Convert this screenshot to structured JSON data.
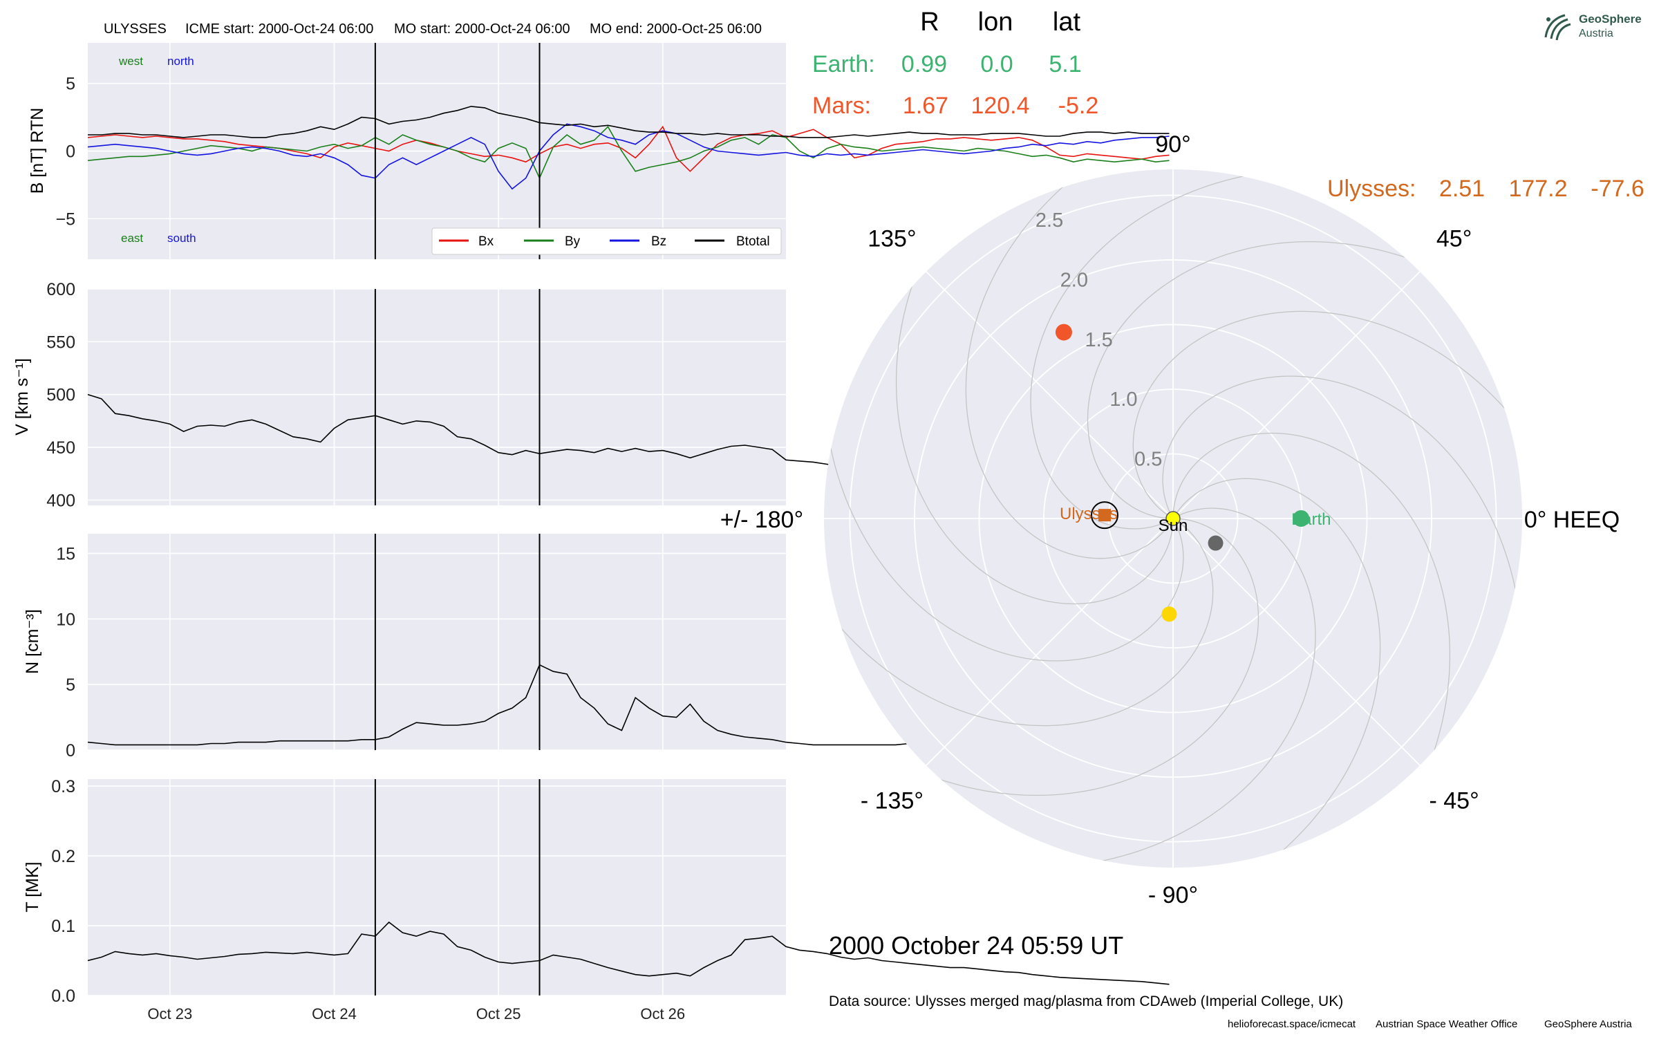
{
  "header": {
    "spacecraft": "ULYSSES",
    "icme_start": "ICME start: 2000-Oct-24 06:00",
    "mo_start": "MO start: 2000-Oct-24 06:00",
    "mo_end": "MO end: 2000-Oct-25 06:00"
  },
  "colors": {
    "panel_bg": "#EAEAF2",
    "grid": "#ffffff",
    "bx": "#e8120f",
    "by": "#1a7f1a",
    "bz": "#1414e0",
    "btotal": "#000000",
    "earth": "#3cb371",
    "mars": "#f0562a",
    "ulysses": "#d2691e",
    "sun": "#ffff00",
    "venus": "#ffd700",
    "mercury": "#666666",
    "logo": "#2f5a4c"
  },
  "positions_table": {
    "headers": [
      "R",
      "lon",
      "lat"
    ],
    "earth": {
      "label": "Earth:",
      "R": "0.99",
      "lon": "0.0",
      "lat": "5.1"
    },
    "mars": {
      "label": "Mars:",
      "R": "1.67",
      "lon": "120.4",
      "lat": "-5.2"
    },
    "ulysses": {
      "label": "Ulysses:",
      "R": "2.51",
      "lon": "177.2",
      "lat": "-77.6"
    }
  },
  "logo": {
    "line1": "GeoSphere",
    "line2": "Austria",
    "icon": "geosphere-logo-icon"
  },
  "date_label": "2000 October 24  05:59 UT",
  "data_source": "Data source: Ulysses merged mag/plasma from CDAweb (Imperial College, UK)",
  "footer": {
    "credit1": "helioforecast.space/icmecat",
    "credit2": "Austrian Space Weather Office",
    "credit3": "GeoSphere Austria"
  },
  "chart_data": [
    {
      "type": "line",
      "panel": "magnetic-field",
      "ylabel": "B [nT] RTN",
      "ylim": [
        -8,
        8
      ],
      "yticks": [
        5,
        0,
        -5
      ],
      "ytick_labels": [
        "5",
        "0",
        "−5"
      ],
      "annotations": {
        "west": "west",
        "north": "north",
        "east": "east",
        "south": "south"
      },
      "legend_position": "lower right",
      "x_start_day": "2000-10-22 12:00",
      "x_step_hours": 2,
      "series": [
        {
          "name": "Bx",
          "values": [
            1.0,
            1.1,
            1.2,
            1.1,
            1.0,
            1.1,
            1.0,
            0.9,
            0.9,
            0.8,
            0.7,
            0.5,
            0.4,
            0.3,
            0.2,
            0.0,
            -0.2,
            -0.5,
            0.3,
            0.6,
            0.4,
            0.2,
            0.0,
            0.5,
            0.8,
            0.6,
            0.3,
            0.0,
            -0.2,
            -0.4,
            -0.3,
            -0.5,
            -0.8,
            -0.2,
            0.3,
            0.5,
            0.2,
            0.5,
            0.6,
            0.2,
            -0.5,
            0.5,
            1.8,
            -0.5,
            -1.5,
            -0.5,
            0.5,
            1.0,
            1.2,
            1.3,
            1.5,
            1.0,
            1.3,
            1.6,
            1.0,
            0.5,
            -0.5,
            -0.3,
            0.2,
            0.5,
            0.6,
            0.7,
            0.9,
            0.9,
            1.0,
            0.9,
            0.8,
            0.9,
            1.0,
            0.8,
            0.3,
            -0.3,
            -0.4,
            -0.2,
            -0.3,
            -0.4,
            -0.5,
            -0.6,
            -0.4,
            -0.3
          ]
        },
        {
          "name": "By",
          "values": [
            -0.7,
            -0.6,
            -0.5,
            -0.4,
            -0.4,
            -0.3,
            -0.2,
            0.0,
            0.2,
            0.4,
            0.3,
            0.2,
            0.0,
            0.3,
            0.2,
            0.1,
            0.0,
            0.3,
            0.5,
            0.2,
            0.4,
            1.0,
            0.5,
            1.2,
            0.8,
            0.5,
            0.3,
            0.0,
            -0.5,
            -0.8,
            0.2,
            0.6,
            0.2,
            -2.0,
            0.3,
            1.2,
            0.5,
            0.8,
            1.8,
            0.0,
            -1.5,
            -1.2,
            -1.0,
            -0.8,
            -0.5,
            0.0,
            0.3,
            0.8,
            1.0,
            0.5,
            1.2,
            1.0,
            0.0,
            -0.5,
            0.2,
            0.5,
            0.3,
            0.2,
            0.0,
            0.1,
            0.2,
            0.3,
            0.2,
            0.1,
            0.0,
            0.2,
            0.1,
            0.0,
            -0.2,
            -0.4,
            -0.3,
            -0.5,
            -0.8,
            -0.6,
            -0.7,
            -0.8,
            -0.7,
            -0.6,
            -0.8,
            -0.7
          ]
        },
        {
          "name": "Bz",
          "values": [
            0.3,
            0.4,
            0.5,
            0.4,
            0.3,
            0.2,
            0.0,
            -0.2,
            -0.3,
            -0.2,
            0.0,
            0.2,
            0.3,
            0.2,
            0.0,
            -0.3,
            -0.4,
            -0.2,
            -0.5,
            -1.0,
            -1.8,
            -2.0,
            -1.0,
            -0.5,
            -1.0,
            -0.5,
            0.0,
            0.5,
            1.0,
            0.5,
            -1.5,
            -2.8,
            -2.0,
            0.0,
            1.2,
            2.0,
            1.8,
            1.5,
            1.0,
            0.8,
            0.5,
            1.2,
            1.5,
            1.3,
            0.8,
            0.3,
            0.0,
            -0.1,
            -0.2,
            -0.3,
            -0.2,
            -0.1,
            -0.3,
            -0.4,
            -0.2,
            -0.3,
            -0.2,
            -0.3,
            -0.2,
            -0.1,
            0.0,
            0.1,
            0.0,
            -0.1,
            -0.2,
            -0.1,
            0.0,
            0.2,
            0.3,
            0.5,
            0.4,
            0.6,
            0.5,
            0.7,
            0.6,
            0.8,
            0.9,
            1.0,
            1.0,
            1.1
          ]
        },
        {
          "name": "Btotal",
          "values": [
            1.2,
            1.2,
            1.3,
            1.3,
            1.2,
            1.2,
            1.1,
            1.0,
            1.1,
            1.2,
            1.2,
            1.1,
            1.0,
            1.0,
            1.2,
            1.3,
            1.5,
            1.8,
            1.6,
            2.0,
            2.5,
            2.4,
            2.0,
            2.2,
            2.3,
            2.5,
            2.8,
            3.0,
            3.3,
            3.2,
            2.8,
            2.6,
            2.4,
            2.1,
            2.0,
            1.9,
            2.0,
            1.8,
            1.9,
            1.7,
            1.5,
            1.4,
            1.4,
            1.3,
            1.3,
            1.2,
            1.3,
            1.2,
            1.2,
            1.2,
            1.1,
            1.1,
            1.0,
            1.0,
            1.0,
            1.1,
            1.2,
            1.1,
            1.2,
            1.3,
            1.4,
            1.3,
            1.3,
            1.2,
            1.2,
            1.2,
            1.3,
            1.3,
            1.3,
            1.2,
            1.1,
            1.1,
            1.3,
            1.4,
            1.4,
            1.3,
            1.4,
            1.3,
            1.3,
            1.3
          ]
        }
      ]
    },
    {
      "type": "line",
      "panel": "speed",
      "ylabel": "V [km s⁻¹]",
      "ylim": [
        395,
        600
      ],
      "yticks": [
        600,
        550,
        500,
        450,
        400
      ],
      "series": [
        {
          "name": "V",
          "values": [
            500,
            496,
            482,
            480,
            477,
            475,
            472,
            465,
            470,
            471,
            470,
            474,
            476,
            472,
            466,
            460,
            458,
            455,
            468,
            476,
            478,
            480,
            476,
            472,
            475,
            474,
            470,
            460,
            458,
            452,
            445,
            443,
            447,
            444,
            446,
            448,
            447,
            445,
            449,
            446,
            449,
            446,
            447,
            444,
            440,
            444,
            448,
            451,
            452,
            450,
            448,
            438,
            437,
            436,
            434,
            432,
            430,
            427,
            424,
            422,
            420,
            418,
            416,
            414,
            412,
            410,
            409,
            408,
            408,
            410,
            411,
            412,
            411,
            410,
            409,
            408,
            407,
            408,
            410,
            412
          ]
        }
      ]
    },
    {
      "type": "line",
      "panel": "density",
      "ylabel": "N [cm⁻³]",
      "ylim": [
        0,
        16.5
      ],
      "yticks": [
        15,
        10,
        5,
        0
      ],
      "series": [
        {
          "name": "N",
          "values": [
            0.6,
            0.5,
            0.4,
            0.4,
            0.4,
            0.4,
            0.4,
            0.4,
            0.4,
            0.5,
            0.5,
            0.6,
            0.6,
            0.6,
            0.7,
            0.7,
            0.7,
            0.7,
            0.7,
            0.7,
            0.8,
            0.8,
            1.0,
            1.6,
            2.1,
            2.0,
            1.9,
            1.9,
            2.0,
            2.2,
            2.8,
            3.2,
            4.0,
            6.5,
            6.0,
            5.8,
            4.0,
            3.2,
            2.0,
            1.5,
            4.0,
            3.2,
            2.6,
            2.5,
            3.5,
            2.2,
            1.5,
            1.2,
            1.0,
            0.9,
            0.8,
            0.6,
            0.5,
            0.4,
            0.4,
            0.4,
            0.4,
            0.4,
            0.4,
            0.4,
            0.5,
            0.6,
            0.8,
            1.0,
            1.2,
            1.3,
            1.1,
            1.0,
            1.0,
            1.1,
            1.2,
            1.3,
            1.2,
            1.0,
            0.8,
            1.0,
            1.2,
            1.3,
            1.6,
            2.2
          ]
        }
      ]
    },
    {
      "type": "line",
      "panel": "temperature",
      "ylabel": "T [MK]",
      "ylim": [
        0,
        0.31
      ],
      "yticks": [
        0.3,
        0.2,
        0.1,
        0.0
      ],
      "xticks": [
        "Oct 23",
        "Oct 24",
        "Oct 25",
        "Oct 26"
      ],
      "series": [
        {
          "name": "T",
          "values": [
            0.05,
            0.055,
            0.063,
            0.06,
            0.058,
            0.06,
            0.057,
            0.055,
            0.052,
            0.054,
            0.056,
            0.059,
            0.06,
            0.062,
            0.061,
            0.06,
            0.062,
            0.06,
            0.058,
            0.06,
            0.088,
            0.085,
            0.105,
            0.09,
            0.085,
            0.092,
            0.088,
            0.07,
            0.065,
            0.055,
            0.048,
            0.046,
            0.048,
            0.05,
            0.058,
            0.055,
            0.052,
            0.046,
            0.04,
            0.035,
            0.03,
            0.028,
            0.03,
            0.032,
            0.028,
            0.04,
            0.05,
            0.058,
            0.08,
            0.082,
            0.085,
            0.07,
            0.065,
            0.063,
            0.06,
            0.055,
            0.052,
            0.054,
            0.05,
            0.048,
            0.046,
            0.044,
            0.042,
            0.04,
            0.04,
            0.038,
            0.036,
            0.034,
            0.033,
            0.03,
            0.028,
            0.026,
            0.025,
            0.024,
            0.023,
            0.022,
            0.021,
            0.02,
            0.018,
            0.016
          ]
        }
      ]
    },
    {
      "type": "scatter",
      "panel": "polar-orbit-plot",
      "rlim": [
        0,
        2.7
      ],
      "rticks": [
        0.5,
        1.0,
        1.5,
        2.0,
        2.5
      ],
      "rtick_labels": [
        "0.5",
        "1.0",
        "1.5",
        "2.0",
        "2.5"
      ],
      "angle_labels": [
        "90°",
        "45°",
        "0° HEEQ",
        "- 45°",
        "- 90°",
        "- 135°",
        "+/- 180°",
        "135°"
      ],
      "bodies": [
        {
          "name": "Sun",
          "r": 0.0,
          "lon": 0.0
        },
        {
          "name": "Earth",
          "r": 0.99,
          "lon": 0.0
        },
        {
          "name": "Mars",
          "r": 1.67,
          "lon": 120.4
        },
        {
          "name": "Ulysses",
          "r": 2.51,
          "lon": 177.2,
          "plotted_r": 0.53
        },
        {
          "name": "",
          "r": 0.74,
          "lon": -92.3,
          "color_key": "venus"
        },
        {
          "name": "",
          "r": 0.38,
          "lon": -30.0,
          "color_key": "mercury"
        }
      ]
    }
  ]
}
